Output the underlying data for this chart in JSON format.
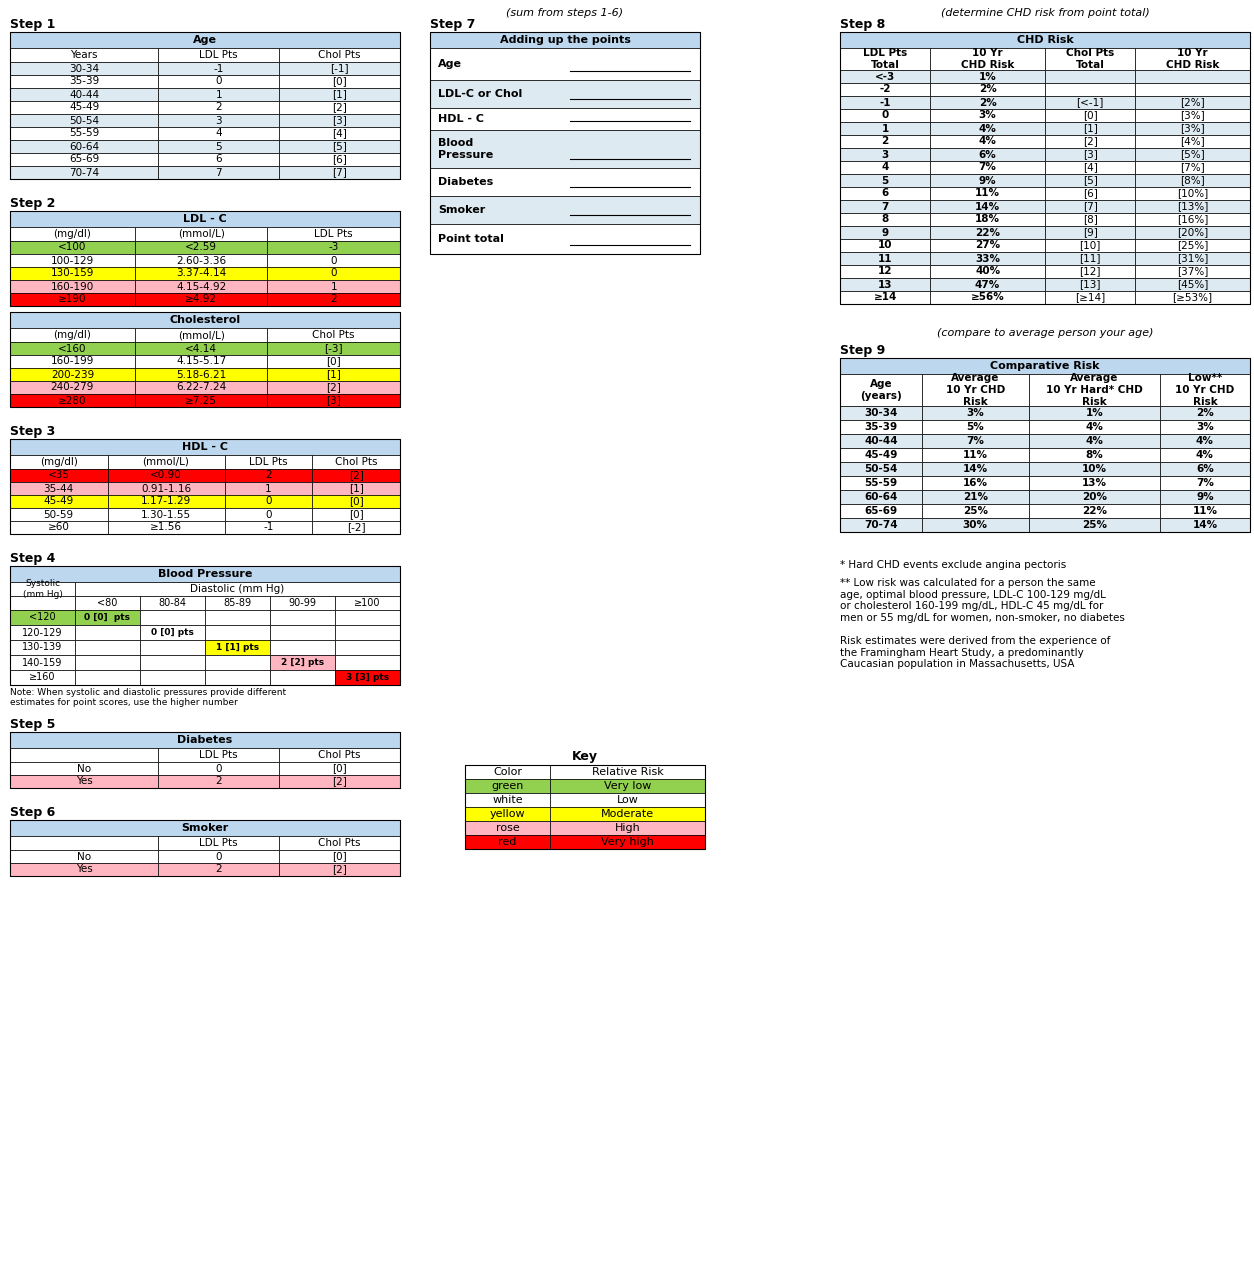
{
  "colors": {
    "green": "#92D050",
    "white": "#FFFFFF",
    "yellow": "#FFFF00",
    "rose": "#FFB6C1",
    "red": "#FF0000",
    "header_blue": "#BDD7EE",
    "row_light": "#DEEAF1",
    "row_white": "#FFFFFF",
    "text_black": "#000000"
  },
  "step1_rows": [
    [
      "30-34",
      "-1",
      "[-1]"
    ],
    [
      "35-39",
      "0",
      "[0]"
    ],
    [
      "40-44",
      "1",
      "[1]"
    ],
    [
      "45-49",
      "2",
      "[2]"
    ],
    [
      "50-54",
      "3",
      "[3]"
    ],
    [
      "55-59",
      "4",
      "[4]"
    ],
    [
      "60-64",
      "5",
      "[5]"
    ],
    [
      "65-69",
      "6",
      "[6]"
    ],
    [
      "70-74",
      "7",
      "[7]"
    ]
  ],
  "step2_ldl_rows": [
    [
      "<100",
      "<2.59",
      "-3",
      "green"
    ],
    [
      "100-129",
      "2.60-3.36",
      "0",
      "white"
    ],
    [
      "130-159",
      "3.37-4.14",
      "0",
      "yellow"
    ],
    [
      "160-190",
      "4.15-4.92",
      "1",
      "rose"
    ],
    [
      "≥190",
      "≥4.92",
      "2",
      "red"
    ]
  ],
  "step2_chol_rows": [
    [
      "<160",
      "<4.14",
      "[-3]",
      "green"
    ],
    [
      "160-199",
      "4.15-5.17",
      "[0]",
      "white"
    ],
    [
      "200-239",
      "5.18-6.21",
      "[1]",
      "yellow"
    ],
    [
      "240-279",
      "6.22-7.24",
      "[2]",
      "rose"
    ],
    [
      "≥280",
      "≥7.25",
      "[3]",
      "red"
    ]
  ],
  "step3_rows": [
    [
      "<35",
      "<0.90",
      "2",
      "[2]",
      "red"
    ],
    [
      "35-44",
      "0.91-1.16",
      "1",
      "[1]",
      "rose"
    ],
    [
      "45-49",
      "1.17-1.29",
      "0",
      "[0]",
      "yellow"
    ],
    [
      "50-59",
      "1.30-1.55",
      "0",
      "[0]",
      "white"
    ],
    [
      "≥60",
      "≥1.56",
      "-1",
      "[-2]",
      "white"
    ]
  ],
  "step4_dias_cols": [
    "<80",
    "80-84",
    "85-89",
    "90-99",
    "≥100"
  ],
  "bp_sys_labels": [
    "<120",
    "120-129",
    "130-139",
    "140-159",
    "≥160"
  ],
  "bp_cell_texts": [
    [
      "0 [0]  pts",
      "",
      "",
      "",
      ""
    ],
    [
      "",
      "0 [0] pts",
      "",
      "",
      ""
    ],
    [
      "",
      "",
      "1 [1] pts",
      "",
      ""
    ],
    [
      "",
      "",
      "",
      "2 [2] pts",
      ""
    ],
    [
      "",
      "",
      "",
      "",
      "3 [3] pts"
    ]
  ],
  "bp_row_colors": [
    [
      "green",
      "white",
      "white",
      "white",
      "white"
    ],
    [
      "white",
      "white",
      "white",
      "white",
      "white"
    ],
    [
      "white",
      "white",
      "yellow",
      "white",
      "white"
    ],
    [
      "white",
      "white",
      "white",
      "rose",
      "white"
    ],
    [
      "white",
      "white",
      "white",
      "white",
      "red"
    ]
  ],
  "step5_rows": [
    [
      "No",
      "0",
      "[0]",
      "white"
    ],
    [
      "Yes",
      "2",
      "[2]",
      "rose"
    ]
  ],
  "step6_rows": [
    [
      "No",
      "0",
      "[0]",
      "white"
    ],
    [
      "Yes",
      "2",
      "[2]",
      "rose"
    ]
  ],
  "step7_rows": [
    "Age",
    "LDL-C or Chol",
    "HDL - C",
    "Blood\nPressure",
    "Diabetes",
    "Smoker",
    "Point total"
  ],
  "step7_row_shaded": [
    false,
    true,
    false,
    true,
    false,
    true,
    false
  ],
  "step8_rows": [
    [
      "<-3",
      "1%",
      "",
      ""
    ],
    [
      "-2",
      "2%",
      "",
      ""
    ],
    [
      "-1",
      "2%",
      "[<-1]",
      "[2%]"
    ],
    [
      "0",
      "3%",
      "[0]",
      "[3%]"
    ],
    [
      "1",
      "4%",
      "[1]",
      "[3%]"
    ],
    [
      "2",
      "4%",
      "[2]",
      "[4%]"
    ],
    [
      "3",
      "6%",
      "[3]",
      "[5%]"
    ],
    [
      "4",
      "7%",
      "[4]",
      "[7%]"
    ],
    [
      "5",
      "9%",
      "[5]",
      "[8%]"
    ],
    [
      "6",
      "11%",
      "[6]",
      "[10%]"
    ],
    [
      "7",
      "14%",
      "[7]",
      "[13%]"
    ],
    [
      "8",
      "18%",
      "[8]",
      "[16%]"
    ],
    [
      "9",
      "22%",
      "[9]",
      "[20%]"
    ],
    [
      "10",
      "27%",
      "[10]",
      "[25%]"
    ],
    [
      "11",
      "33%",
      "[11]",
      "[31%]"
    ],
    [
      "12",
      "40%",
      "[12]",
      "[37%]"
    ],
    [
      "13",
      "47%",
      "[13]",
      "[45%]"
    ],
    [
      "≥14",
      "≥56%",
      "[≥14]",
      "[≥53%]"
    ]
  ],
  "step9_rows": [
    [
      "30-34",
      "3%",
      "1%",
      "2%"
    ],
    [
      "35-39",
      "5%",
      "4%",
      "3%"
    ],
    [
      "40-44",
      "7%",
      "4%",
      "4%"
    ],
    [
      "45-49",
      "11%",
      "8%",
      "4%"
    ],
    [
      "50-54",
      "14%",
      "10%",
      "6%"
    ],
    [
      "55-59",
      "16%",
      "13%",
      "7%"
    ],
    [
      "60-64",
      "21%",
      "20%",
      "9%"
    ],
    [
      "65-69",
      "25%",
      "22%",
      "11%"
    ],
    [
      "70-74",
      "30%",
      "25%",
      "14%"
    ]
  ],
  "key_colors": [
    "green",
    "white",
    "yellow",
    "rose",
    "red"
  ],
  "key_labels": [
    "green",
    "white",
    "yellow",
    "rose",
    "red"
  ],
  "key_risk": [
    "Very low",
    "Low",
    "Moderate",
    "High",
    "Very high"
  ],
  "footnote1": "* Hard CHD events exclude angina pectoris",
  "footnote2": "** Low risk was calculated for a person the same\nage, optimal blood pressure, LDL-C 100-129 mg/dL\nor cholesterol 160-199 mg/dL, HDL-C 45 mg/dL for\nmen or 55 mg/dL for women, non-smoker, no diabetes",
  "footnote3": "Risk estimates were derived from the experience of\nthe Framingham Heart Study, a predominantly\nCaucasian population in Massachusetts, USA"
}
